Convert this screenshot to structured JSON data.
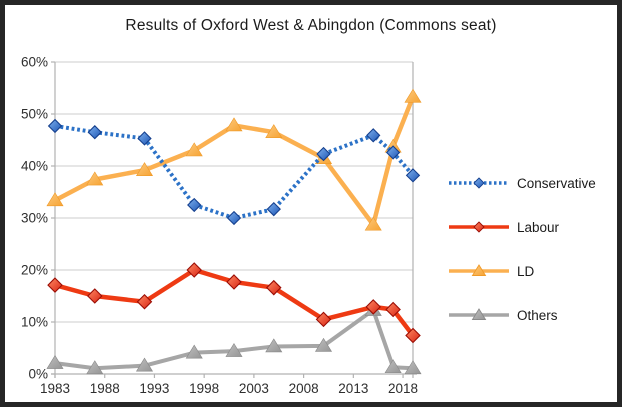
{
  "window": {
    "background": "#ffffff",
    "frame_color": "#262626"
  },
  "chart_data": {
    "type": "line",
    "title": "Results of Oxford West & Abingdon (Commons seat)",
    "xlabel": "",
    "ylabel": "",
    "x": [
      1983,
      1987,
      1992,
      1997,
      2001,
      2005,
      2010,
      2015,
      2017,
      2019
    ],
    "xlim": [
      1983,
      2019
    ],
    "x_ticks": [
      1983,
      1988,
      1993,
      1998,
      2003,
      2008,
      2013,
      2018
    ],
    "x_tick_labels": [
      "1983",
      "1988",
      "1993",
      "1998",
      "2003",
      "2008",
      "2013",
      "2018"
    ],
    "ylim": [
      0,
      60
    ],
    "y_ticks": [
      0,
      10,
      20,
      30,
      40,
      50,
      60
    ],
    "y_tick_labels": [
      "0%",
      "10%",
      "20%",
      "30%",
      "40%",
      "50%",
      "60%"
    ],
    "grid": "horizontal",
    "grid_color": "#cccccc",
    "axis_color": "#b2b2b2",
    "text_color": "#2e2e2e",
    "legend_position": "right",
    "series": [
      {
        "name": "Conservative",
        "marker": "diamond",
        "line_style": "dotted",
        "line_color": "#2c72c7",
        "marker_light": "#7fb2ef",
        "marker_base": "#1d55b4",
        "marker_stroke": "#16408e",
        "values": [
          47.7,
          46.5,
          45.3,
          32.5,
          30.0,
          31.7,
          42.3,
          45.9,
          42.6,
          38.2
        ]
      },
      {
        "name": "Labour",
        "marker": "diamond",
        "line_style": "solid",
        "line_color": "#ee3a13",
        "marker_light": "#ff8a64",
        "marker_base": "#d82414",
        "marker_stroke": "#9a0d05",
        "values": [
          17.1,
          15.0,
          13.9,
          20.0,
          17.7,
          16.6,
          10.5,
          12.9,
          12.4,
          7.4
        ]
      },
      {
        "name": "LD",
        "marker": "triangle",
        "line_style": "solid",
        "line_color": "#fbb050",
        "marker_light": "#fdc97e",
        "marker_base": "#f6a333",
        "marker_stroke": "#ef9a28",
        "values": [
          33.4,
          37.4,
          39.2,
          43.0,
          47.8,
          46.5,
          41.5,
          28.7,
          43.7,
          53.3
        ]
      },
      {
        "name": "Others",
        "marker": "triangle",
        "line_style": "solid",
        "line_color": "#a6a6a6",
        "marker_light": "#bfbfbf",
        "marker_base": "#959595",
        "marker_stroke": "#898989",
        "values": [
          2.1,
          1.1,
          1.6,
          4.1,
          4.4,
          5.3,
          5.4,
          12.3,
          1.3,
          1.1
        ]
      }
    ]
  }
}
